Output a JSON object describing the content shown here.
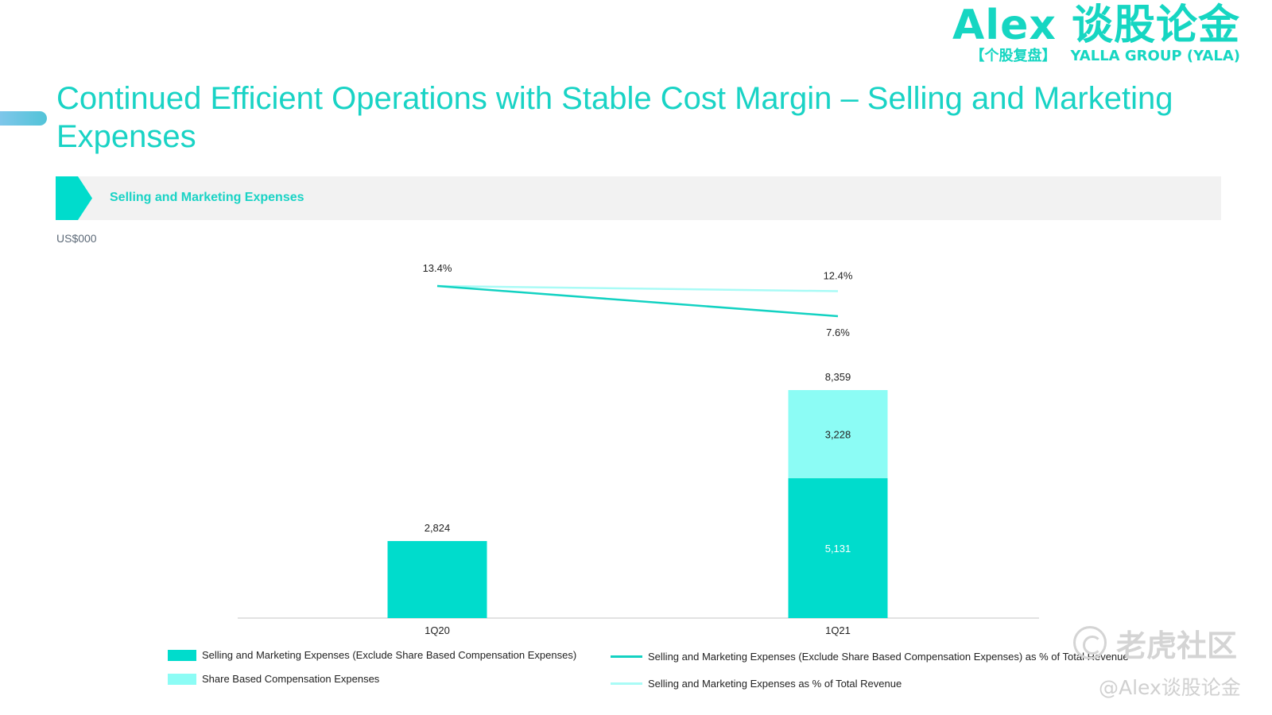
{
  "brand": {
    "main": "Alex 谈股论金",
    "sub_left": "【个股复盘】",
    "sub_right": "YALLA GROUP (YALA)"
  },
  "page_title": "Continued Efficient Operations with Stable Cost Margin – Selling and Marketing Expenses",
  "section_title": "Selling and Marketing Expenses",
  "unit_label": "US$000",
  "colors": {
    "accent": "#19d3c5",
    "bar_base": "#00dccc",
    "bar_sbc": "#8cfcf5",
    "line_excl": "#13d2c2",
    "line_total": "#a9fbf6",
    "band_bg": "#f2f2f2"
  },
  "chart_data": {
    "type": "bar",
    "stacked": true,
    "categories": [
      "1Q20",
      "1Q21"
    ],
    "series": [
      {
        "name": "Selling and Marketing Expenses (Exclude Share Based Compensation Expenses)",
        "values": [
          2824,
          5131
        ],
        "labels": [
          "",
          "5,131"
        ]
      },
      {
        "name": "Share Based Compensation Expenses",
        "values": [
          0,
          3228
        ],
        "labels": [
          "",
          "3,228"
        ]
      }
    ],
    "totals": [
      2824,
      8359
    ],
    "total_labels": [
      "2,824",
      "8,359"
    ],
    "lines": [
      {
        "name": "Selling and Marketing Expenses (Exclude Share Based Compensation Expenses) as % of Total Revenue",
        "values": [
          13.4,
          7.6
        ],
        "labels": [
          "13.4%",
          "7.6%"
        ]
      },
      {
        "name": "Selling and Marketing Expenses as % of Total Revenue",
        "values": [
          13.4,
          12.4
        ],
        "labels": [
          "",
          "12.4%"
        ]
      }
    ],
    "ylabel": "US$000",
    "ylim": [
      0,
      8359
    ],
    "line_ylim": [
      7.6,
      13.4
    ],
    "grid": false,
    "legend_position": "bottom"
  },
  "watermarks": {
    "community": "老虎社区",
    "handle": "@Alex谈股论金"
  }
}
